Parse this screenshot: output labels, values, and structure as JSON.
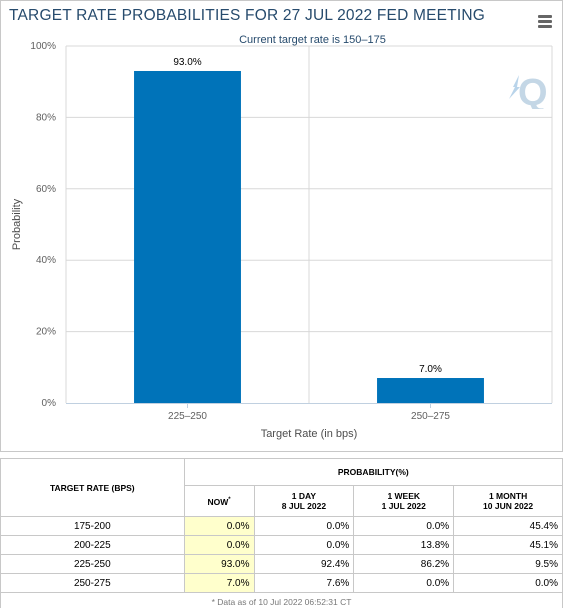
{
  "chart_data": {
    "type": "bar",
    "title": "TARGET RATE PROBABILITIES FOR 27 JUL 2022 FED MEETING",
    "subtitle": "Current target rate is 150–175",
    "categories": [
      "225–250",
      "250–275"
    ],
    "values": [
      93.0,
      7.0
    ],
    "value_labels": [
      "93.0%",
      "7.0%"
    ],
    "xlabel": "Target Rate (in bps)",
    "ylabel": "Probability",
    "ylim": [
      0,
      100
    ],
    "yticks": [
      0,
      20,
      40,
      60,
      80,
      100
    ],
    "ytick_labels": [
      "0%",
      "20%",
      "40%",
      "60%",
      "80%",
      "100%"
    ],
    "bar_color": "#0073b9",
    "grid": true
  },
  "watermark": {
    "text": "Q"
  },
  "table": {
    "header_target": "TARGET RATE (BPS)",
    "header_probability": "PROBABILITY(%)",
    "columns": [
      {
        "line1": "NOW",
        "line2": "",
        "marker": "*"
      },
      {
        "line1": "1 DAY",
        "line2": "8 JUL 2022"
      },
      {
        "line1": "1 WEEK",
        "line2": "1 JUL 2022"
      },
      {
        "line1": "1 MONTH",
        "line2": "10 JUN 2022"
      }
    ],
    "rows": [
      {
        "rate": "175-200",
        "now": "0.0%",
        "day": "0.0%",
        "week": "0.0%",
        "month": "45.4%"
      },
      {
        "rate": "200-225",
        "now": "0.0%",
        "day": "0.0%",
        "week": "13.8%",
        "month": "45.1%"
      },
      {
        "rate": "225-250",
        "now": "93.0%",
        "day": "92.4%",
        "week": "86.2%",
        "month": "9.5%"
      },
      {
        "rate": "250-275",
        "now": "7.0%",
        "day": "7.6%",
        "week": "0.0%",
        "month": "0.0%"
      }
    ],
    "footnote": "* Data as of 10 Jul 2022 06:52:31 CT"
  }
}
